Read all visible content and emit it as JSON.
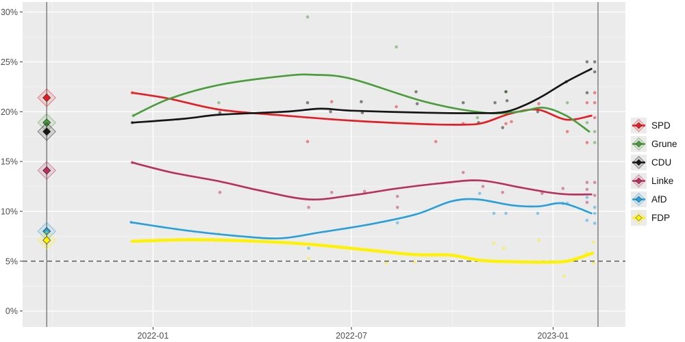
{
  "chart_data": {
    "type": "line",
    "title": "",
    "grid": "on",
    "legend_position": "right",
    "x_domain": [
      "2021-09-04",
      "2023-03-08"
    ],
    "y_domain": [
      -1.6,
      31.0
    ],
    "x_ticks": [
      {
        "date": "2022-01-01",
        "label": "2022-01"
      },
      {
        "date": "2022-07-01",
        "label": "2022-07"
      },
      {
        "date": "2023-01-01",
        "label": "2023-01"
      }
    ],
    "x_minor_ticks": [
      "2021-10-01",
      "2022-04-01",
      "2022-10-01"
    ],
    "y_ticks": [
      {
        "value": 0,
        "label": "0%"
      },
      {
        "value": 5,
        "label": "5%"
      },
      {
        "value": 10,
        "label": "10%"
      },
      {
        "value": 15,
        "label": "15%"
      },
      {
        "value": 20,
        "label": "20%"
      },
      {
        "value": 25,
        "label": "25%"
      },
      {
        "value": 30,
        "label": "30%"
      }
    ],
    "y_minor_ticks": [
      2.5,
      7.5,
      12.5,
      17.5,
      22.5,
      27.5
    ],
    "threshold_line": {
      "value": 5,
      "style": "dashed"
    },
    "event_lines": [
      {
        "date": "2021-09-26"
      },
      {
        "date": "2023-02-11"
      }
    ],
    "colors": {
      "panel_bg": "#EBEBEB",
      "grid": "#FFFFFF",
      "axis_text": "#4D4D4D",
      "tick_mark": "#333333",
      "threshold": "#4D4D4D",
      "event_line": "#6E6E6E"
    },
    "series": [
      {
        "name": "SPD",
        "color": "#E31E24",
        "election_2021": 21.4,
        "trend": [
          [
            "2021-12-13",
            21.9
          ],
          [
            "2022-01-16",
            21.3
          ],
          [
            "2022-03-03",
            20.2
          ],
          [
            "2022-05-02",
            19.6
          ],
          [
            "2022-07-01",
            19.1
          ],
          [
            "2022-09-06",
            18.75
          ],
          [
            "2022-10-13",
            18.7
          ],
          [
            "2022-10-30",
            18.9
          ],
          [
            "2022-11-23",
            19.8
          ],
          [
            "2022-12-18",
            20.2
          ],
          [
            "2023-01-13",
            19.2
          ],
          [
            "2023-02-05",
            19.6
          ]
        ],
        "polls": [
          [
            "2021-12-13",
            21.9
          ],
          [
            "2022-05-22",
            17.0
          ],
          [
            "2022-06-13",
            21.0
          ],
          [
            "2022-08-11",
            20.5
          ],
          [
            "2022-09-16",
            17.0
          ],
          [
            "2022-10-11",
            18.8
          ],
          [
            "2022-11-19",
            18.8
          ],
          [
            "2022-11-24",
            19.0
          ],
          [
            "2022-12-19",
            20.8
          ],
          [
            "2023-01-14",
            18.0
          ],
          [
            "2023-02-01",
            20.9
          ],
          [
            "2023-02-01",
            16.9
          ],
          [
            "2023-02-08",
            20.9
          ],
          [
            "2023-02-08",
            21.9
          ],
          [
            "2023-02-08",
            19.4
          ]
        ]
      },
      {
        "name": "Grune",
        "color": "#4A9C3C",
        "election_2021": 18.9,
        "trend": [
          [
            "2021-12-14",
            19.6
          ],
          [
            "2022-01-16",
            21.3
          ],
          [
            "2022-03-03",
            22.7
          ],
          [
            "2022-05-02",
            23.6
          ],
          [
            "2022-05-28",
            23.7
          ],
          [
            "2022-07-01",
            23.3
          ],
          [
            "2022-09-06",
            21.0
          ],
          [
            "2022-10-30",
            19.9
          ],
          [
            "2022-12-01",
            20.0
          ],
          [
            "2022-12-23",
            20.4
          ],
          [
            "2023-01-13",
            19.6
          ],
          [
            "2023-02-03",
            18.0
          ]
        ],
        "polls": [
          [
            "2021-12-14",
            19.6
          ],
          [
            "2022-03-02",
            20.9
          ],
          [
            "2022-05-22",
            29.5
          ],
          [
            "2022-08-11",
            26.5
          ],
          [
            "2022-10-24",
            19.4
          ],
          [
            "2022-11-19",
            22.0
          ],
          [
            "2023-01-14",
            20.9
          ],
          [
            "2023-02-01",
            18.9
          ],
          [
            "2023-02-08",
            18.0
          ],
          [
            "2023-02-08",
            16.9
          ]
        ]
      },
      {
        "name": "CDU",
        "color": "#151515",
        "election_2021": 18.0,
        "trend": [
          [
            "2021-12-13",
            18.9
          ],
          [
            "2022-01-30",
            19.3
          ],
          [
            "2022-03-03",
            19.7
          ],
          [
            "2022-05-02",
            20.0
          ],
          [
            "2022-06-03",
            20.3
          ],
          [
            "2022-07-01",
            20.1
          ],
          [
            "2022-09-06",
            19.9
          ],
          [
            "2022-10-26",
            19.85
          ],
          [
            "2022-11-19",
            20.0
          ],
          [
            "2022-12-07",
            20.7
          ],
          [
            "2022-12-23",
            21.6
          ],
          [
            "2023-01-13",
            23.0
          ],
          [
            "2023-02-05",
            24.3
          ]
        ],
        "polls": [
          [
            "2021-12-13",
            18.9
          ],
          [
            "2022-03-03",
            19.9
          ],
          [
            "2022-05-22",
            20.9
          ],
          [
            "2022-06-12",
            20.0
          ],
          [
            "2022-07-10",
            21.0
          ],
          [
            "2022-07-11",
            19.9
          ],
          [
            "2022-08-29",
            22.0
          ],
          [
            "2022-08-30",
            20.8
          ],
          [
            "2022-10-11",
            20.9
          ],
          [
            "2022-10-25",
            18.9
          ],
          [
            "2022-11-09",
            20.9
          ],
          [
            "2022-11-16",
            18.4
          ],
          [
            "2022-11-19",
            22.0
          ],
          [
            "2022-11-20",
            21.1
          ],
          [
            "2022-12-18",
            20.0
          ],
          [
            "2023-01-13",
            23.0
          ],
          [
            "2023-02-01",
            25.0
          ],
          [
            "2023-02-01",
            21.9
          ],
          [
            "2023-02-08",
            25.0
          ],
          [
            "2023-02-08",
            24.0
          ]
        ]
      },
      {
        "name": "Linke",
        "color": "#B8325E",
        "election_2021": 14.1,
        "trend": [
          [
            "2021-12-13",
            14.9
          ],
          [
            "2022-01-18",
            13.9
          ],
          [
            "2022-03-03",
            13.0
          ],
          [
            "2022-04-08",
            12.1
          ],
          [
            "2022-05-23",
            11.2
          ],
          [
            "2022-07-01",
            11.6
          ],
          [
            "2022-08-12",
            12.3
          ],
          [
            "2022-09-19",
            12.8
          ],
          [
            "2022-10-26",
            13.1
          ],
          [
            "2022-12-02",
            12.4
          ],
          [
            "2022-12-28",
            11.9
          ],
          [
            "2023-01-15",
            11.7
          ],
          [
            "2023-02-05",
            11.7
          ]
        ],
        "polls": [
          [
            "2021-12-13",
            14.9
          ],
          [
            "2022-03-03",
            11.9
          ],
          [
            "2022-05-23",
            10.4
          ],
          [
            "2022-06-13",
            11.9
          ],
          [
            "2022-07-13",
            12.0
          ],
          [
            "2022-08-12",
            11.5
          ],
          [
            "2022-08-12",
            10.4
          ],
          [
            "2022-10-11",
            13.9
          ],
          [
            "2022-10-29",
            12.5
          ],
          [
            "2022-11-16",
            11.9
          ],
          [
            "2022-12-22",
            11.8
          ],
          [
            "2023-01-10",
            12.3
          ],
          [
            "2023-02-01",
            12.9
          ],
          [
            "2023-02-01",
            12.2
          ],
          [
            "2023-02-01",
            10.9
          ],
          [
            "2023-02-08",
            12.9
          ],
          [
            "2023-02-08",
            11.6
          ]
        ]
      },
      {
        "name": "AfD",
        "color": "#29A0DA",
        "election_2021": 8.0,
        "trend": [
          [
            "2021-12-12",
            8.9
          ],
          [
            "2022-01-30",
            8.1
          ],
          [
            "2022-03-22",
            7.5
          ],
          [
            "2022-04-28",
            7.3
          ],
          [
            "2022-06-03",
            7.9
          ],
          [
            "2022-07-18",
            8.7
          ],
          [
            "2022-08-29",
            9.7
          ],
          [
            "2022-09-30",
            11.0
          ],
          [
            "2022-10-24",
            11.2
          ],
          [
            "2022-11-25",
            10.6
          ],
          [
            "2022-12-19",
            10.5
          ],
          [
            "2023-01-10",
            10.8
          ],
          [
            "2023-02-05",
            9.8
          ]
        ],
        "polls": [
          [
            "2021-12-12",
            8.9
          ],
          [
            "2022-05-23",
            6.3
          ],
          [
            "2022-08-12",
            8.85
          ],
          [
            "2022-10-26",
            11.8
          ],
          [
            "2022-11-08",
            9.8
          ],
          [
            "2022-11-19",
            9.8
          ],
          [
            "2022-12-18",
            9.8
          ],
          [
            "2023-01-10",
            10.8
          ],
          [
            "2023-01-14",
            10.8
          ],
          [
            "2023-02-01",
            11.4
          ],
          [
            "2023-02-01",
            9.1
          ],
          [
            "2023-02-08",
            10.4
          ],
          [
            "2023-02-08",
            9.8
          ],
          [
            "2023-02-08",
            8.8
          ]
        ]
      },
      {
        "name": "FDP",
        "color": "#FFF200",
        "election_2021": 7.1,
        "trend": [
          [
            "2021-12-13",
            7.0
          ],
          [
            "2022-02-01",
            7.15
          ],
          [
            "2022-03-25",
            7.05
          ],
          [
            "2022-05-23",
            6.7
          ],
          [
            "2022-07-22",
            6.05
          ],
          [
            "2022-08-29",
            5.65
          ],
          [
            "2022-09-30",
            5.6
          ],
          [
            "2022-10-30",
            5.05
          ],
          [
            "2022-12-19",
            4.9
          ],
          [
            "2023-01-10",
            4.95
          ],
          [
            "2023-01-21",
            5.2
          ],
          [
            "2023-02-06",
            5.8
          ]
        ],
        "polls": [
          [
            "2021-12-13",
            7.0
          ],
          [
            "2022-03-02",
            7.8
          ],
          [
            "2022-05-23",
            5.3
          ],
          [
            "2022-08-02",
            4.8
          ],
          [
            "2022-08-28",
            4.9
          ],
          [
            "2022-11-08",
            6.8
          ],
          [
            "2022-11-17",
            6.3
          ],
          [
            "2022-12-19",
            7.1
          ],
          [
            "2023-01-11",
            3.5
          ],
          [
            "2023-02-01",
            5.8
          ],
          [
            "2023-02-07",
            6.9
          ],
          [
            "2023-02-07",
            4.8
          ]
        ]
      }
    ]
  }
}
